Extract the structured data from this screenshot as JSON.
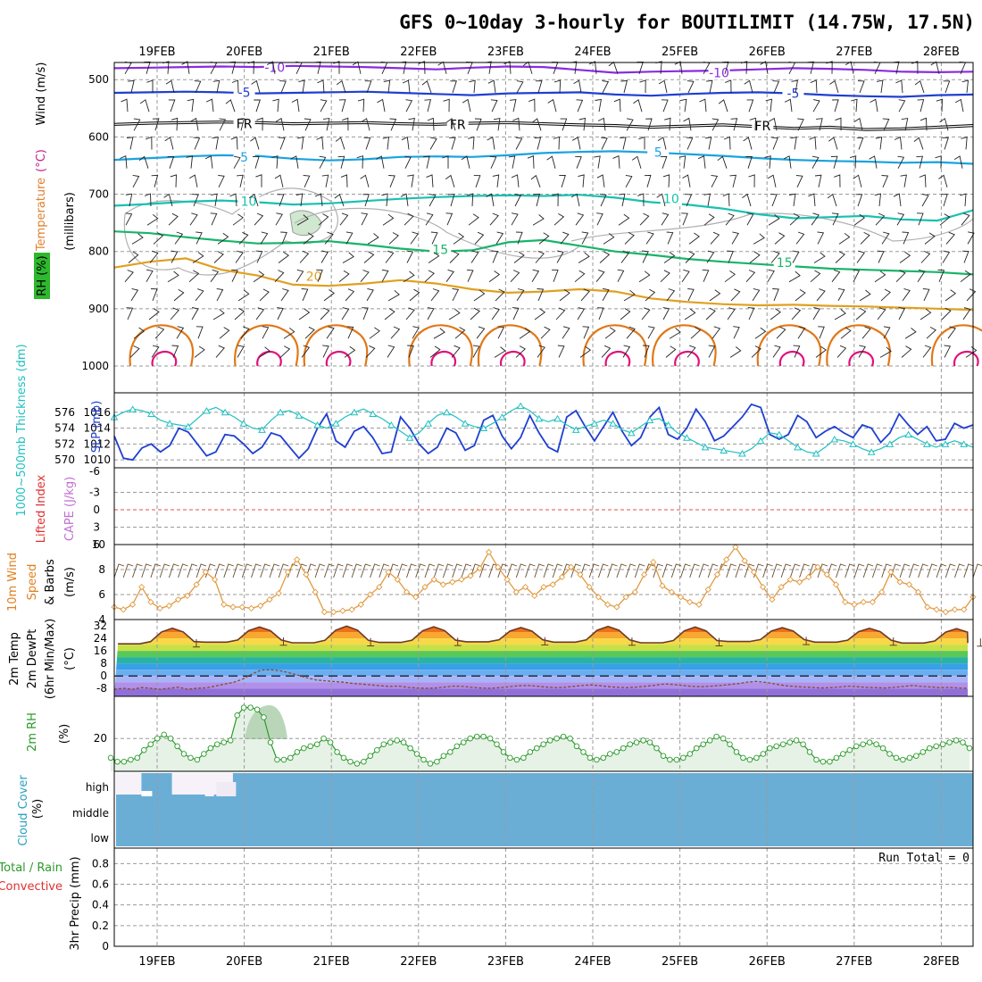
{
  "title": "GFS 0~10day 3-hourly for BOUTILIMIT (14.75W, 17.5N)",
  "colors": {
    "purple": "#8a2be2",
    "blue": "#1f3fd1",
    "lightblue": "#1aa3e0",
    "teal": "#19c1b0",
    "green": "#18b46a",
    "gold": "#e0a020",
    "orange": "#e07818",
    "magenta": "#e0107a",
    "slp": "#1f3fd1",
    "thick": "#20c0c0",
    "wind10": "#e09a40",
    "rh2m": "#2a9a2a",
    "cloud": "#6aaed6",
    "grid": "#9a9a9a"
  },
  "chart_data": [
    {
      "id": "upper_air",
      "type": "contour",
      "ylabel_parts": [
        "RH (%)",
        "Temperature",
        "(°C)",
        "Wind (m/s)"
      ],
      "yaxis_label": "(millibars)",
      "y_ticks": [
        "500",
        "600",
        "700",
        "800",
        "900",
        "1000"
      ],
      "ylim": [
        470,
        1000
      ],
      "temperature_contours": [
        {
          "label": "-10",
          "values": [
            480,
            479,
            478,
            477,
            478,
            476,
            477,
            478,
            480,
            482,
            479,
            477,
            478,
            483,
            488,
            486,
            485,
            484,
            482,
            480,
            481,
            483,
            486,
            487,
            486
          ]
        },
        {
          "label": "-5",
          "values": [
            523,
            522,
            521,
            522,
            524,
            523,
            522,
            521,
            523,
            525,
            527,
            524,
            523,
            522,
            526,
            528,
            525,
            523,
            522,
            524,
            527,
            529,
            530,
            527,
            526
          ]
        },
        {
          "label": "FR",
          "values": [
            578,
            576,
            575,
            574,
            575,
            577,
            576,
            575,
            577,
            578,
            576,
            575,
            577,
            579,
            580,
            583,
            581,
            579,
            582,
            585,
            583,
            587,
            586,
            583,
            580
          ]
        },
        {
          "label": "5",
          "values": [
            640,
            637,
            634,
            632,
            633,
            638,
            641,
            639,
            635,
            634,
            635,
            632,
            628,
            626,
            625,
            627,
            630,
            633,
            637,
            640,
            642,
            643,
            645,
            644,
            647
          ]
        },
        {
          "label": "10",
          "values": [
            720,
            717,
            713,
            711,
            714,
            718,
            716,
            712,
            708,
            705,
            703,
            702,
            703,
            701,
            706,
            714,
            718,
            725,
            735,
            742,
            740,
            738,
            744,
            746,
            728
          ]
        },
        {
          "label": "15",
          "values": [
            765,
            768,
            775,
            781,
            786,
            785,
            782,
            788,
            795,
            800,
            798,
            784,
            780,
            790,
            800,
            806,
            813,
            818,
            822,
            826,
            830,
            832,
            834,
            836,
            840
          ]
        },
        {
          "label": "20",
          "values": [
            828,
            818,
            812,
            832,
            842,
            858,
            860,
            856,
            850,
            856,
            866,
            872,
            870,
            866,
            870,
            882,
            888,
            892,
            894,
            893,
            895,
            896,
            898,
            900,
            902
          ]
        }
      ],
      "contour_labels": [
        {
          "text": "-10",
          "x": 1.35,
          "series": 0
        },
        {
          "text": "-10",
          "x": 6.45,
          "series": 0
        },
        {
          "text": "-5",
          "x": 1.0,
          "series": 1
        },
        {
          "text": "-5",
          "x": 7.3,
          "series": 1
        },
        {
          "text": "FR",
          "x": 1.0,
          "series": 2
        },
        {
          "text": "FR",
          "x": 3.45,
          "series": 2
        },
        {
          "text": "FR",
          "x": 6.95,
          "series": 2
        },
        {
          "text": "5",
          "x": 1.0,
          "series": 3
        },
        {
          "text": "5",
          "x": 5.75,
          "series": 3
        },
        {
          "text": "10",
          "x": 1.05,
          "series": 4
        },
        {
          "text": "10",
          "x": 5.9,
          "series": 4
        },
        {
          "text": "15",
          "x": 3.25,
          "series": 5
        },
        {
          "text": "15",
          "x": 7.2,
          "series": 5
        },
        {
          "text": "20",
          "x": 1.8,
          "series": 6
        }
      ]
    },
    {
      "id": "slp_thickness",
      "type": "line",
      "ylabel_left": "1000~500mb Thickness (dm)",
      "ylabel_right": "SLP (mb)",
      "yticks_left": [
        "570",
        "572",
        "574",
        "576"
      ],
      "yticks_right": [
        "1010",
        "1012",
        "1014",
        "1016"
      ],
      "ylim_slp": [
        1009,
        1018
      ],
      "slp": [
        1013,
        1010.2,
        1010,
        1011.5,
        1012,
        1011,
        1011.8,
        1014,
        1013.5,
        1012,
        1010.5,
        1011,
        1013.2,
        1013,
        1012,
        1010.8,
        1011.6,
        1013.4,
        1013,
        1011.6,
        1010.2,
        1011.4,
        1014,
        1015.8,
        1012.4,
        1011.6,
        1013.6,
        1014.2,
        1012.8,
        1010.8,
        1011,
        1015.4,
        1014,
        1012,
        1010.8,
        1011.6,
        1014,
        1013.4,
        1011.2,
        1011.8,
        1015,
        1015.6,
        1013,
        1011.4,
        1012.8,
        1015.6,
        1013.4,
        1011.6,
        1011,
        1015.4,
        1016.2,
        1014.2,
        1012.4,
        1014.2,
        1016,
        1013.6,
        1011.8,
        1012.8,
        1015.4,
        1016.6,
        1013.2,
        1012.6,
        1014,
        1016.4,
        1014.8,
        1012.4,
        1013,
        1014.2,
        1015.4,
        1017,
        1016.6,
        1013.2,
        1012.6,
        1013.2,
        1015.6,
        1014.8,
        1012.8,
        1013.6,
        1014.2,
        1013.4,
        1012.8,
        1014.4,
        1014,
        1012.2,
        1013.4,
        1015.8,
        1014.4,
        1013.2,
        1014.2,
        1012.4,
        1012.6,
        1014.6,
        1014,
        1014.4
      ],
      "thickness": [
        1015.4,
        1016,
        1016.4,
        1016.2,
        1015.8,
        1015,
        1014.6,
        1014.4,
        1014.2,
        1015.2,
        1016.2,
        1016.6,
        1016,
        1015.4,
        1014.6,
        1014,
        1013.8,
        1015,
        1016,
        1016.2,
        1015.6,
        1015,
        1014.4,
        1014,
        1014.6,
        1015.4,
        1016,
        1016.4,
        1015.8,
        1015.2,
        1014.4,
        1013.6,
        1012.8,
        1013.4,
        1014.6,
        1015.6,
        1016,
        1015.4,
        1014.6,
        1014.2,
        1014,
        1014.6,
        1015.4,
        1016.2,
        1016.8,
        1016.2,
        1015.2,
        1014.8,
        1015.2,
        1014.4,
        1013.8,
        1014.2,
        1014.6,
        1015,
        1014.6,
        1013.8,
        1013.4,
        1014.2,
        1015,
        1015.2,
        1014.4,
        1013.4,
        1012.8,
        1012.2,
        1011.6,
        1011.4,
        1011.2,
        1011,
        1010.8,
        1011.4,
        1012.4,
        1013.4,
        1013.2,
        1012.4,
        1011.6,
        1011,
        1010.8,
        1011.6,
        1012.6,
        1012.4,
        1012,
        1011.4,
        1011,
        1011.4,
        1012,
        1012.8,
        1013.2,
        1012.6,
        1012,
        1011.6,
        1012,
        1012.4,
        1012,
        1011.6
      ]
    },
    {
      "id": "cape_li",
      "type": "line",
      "ylabel_parts": [
        "Lifted Index",
        "CAPE (J/kg)"
      ],
      "y_ticks": [
        "-3",
        "0",
        "3",
        "6"
      ],
      "ytick_top": "-6",
      "values": []
    },
    {
      "id": "wind10m",
      "type": "line",
      "ylabel_parts": [
        "10m Wind",
        "Speed",
        "& Barbs",
        "(m/s)"
      ],
      "y_ticks": [
        "4",
        "6",
        "8",
        "10"
      ],
      "ylim": [
        4,
        10
      ],
      "values": [
        5,
        4.8,
        5.2,
        6.6,
        5.4,
        4.9,
        5.1,
        5.6,
        5.9,
        6.8,
        7.8,
        7.2,
        5.2,
        5,
        5,
        4.9,
        5.1,
        5.6,
        6.1,
        7.8,
        8.8,
        7.6,
        6.2,
        4.6,
        4.6,
        4.7,
        4.8,
        5.2,
        6,
        6.6,
        7.8,
        7.2,
        6.2,
        5.8,
        6.6,
        7.2,
        6.8,
        7,
        7.2,
        7.5,
        8.1,
        9.4,
        8.2,
        7.2,
        6.2,
        6.6,
        5.9,
        6.6,
        6.8,
        7.4,
        8.2,
        7.6,
        6.6,
        5.8,
        5.2,
        5,
        5.8,
        6.2,
        7.6,
        8.6,
        6.7,
        6.2,
        5.8,
        5.4,
        5.2,
        6.4,
        7.6,
        8.8,
        9.8,
        8.7,
        7.8,
        6.6,
        5.6,
        6.6,
        7.2,
        7,
        7.4,
        8.2,
        7.6,
        6.8,
        5.4,
        5.2,
        5.4,
        5.4,
        6.2,
        7.8,
        7,
        6.8,
        6.2,
        5,
        4.8,
        4.6,
        4.8,
        4.8,
        5.8
      ]
    },
    {
      "id": "temp2m",
      "type": "area",
      "ylabel_parts": [
        "2m Temp",
        "2m DewPt",
        "(6hr Min/Max)",
        "(°C)"
      ],
      "y_ticks": [
        "-8",
        "0",
        "8",
        "16",
        "24",
        "32"
      ],
      "ylim": [
        -13,
        36
      ],
      "temp_max_daily": [
        30.5,
        31.2,
        31.8,
        31.4,
        30.9,
        31.6,
        31.2,
        30.8,
        30.4,
        30.2
      ],
      "temp_min_daily": [
        20.5,
        21.6,
        21.2,
        21.4,
        21.8,
        21.6,
        21.2,
        22,
        21.6,
        21
      ],
      "dewpoint": [
        -8.5,
        -7.9,
        -8.5,
        -7.4,
        -7.9,
        -8.5,
        -7.9,
        -7.2,
        -8.5,
        -7.9,
        -7.6,
        -6.5,
        -5.2,
        -4.1,
        -2,
        1.2,
        3.8,
        4,
        3.4,
        2.1,
        0.5,
        -1.2,
        -2.6,
        -3.1,
        -3.6,
        -4,
        -4.8,
        -5.2,
        -5.7,
        -6.3,
        -6.7,
        -6.5,
        -7.3,
        -7.7,
        -7.9,
        -7.7,
        -7.1,
        -6.5,
        -6.7,
        -7.3,
        -7.7,
        -7.9,
        -7.5,
        -6.9,
        -6.3,
        -6.1,
        -6.5,
        -7.1,
        -7.5,
        -7.3,
        -6.7,
        -6.1,
        -5.7,
        -6.3,
        -6.9,
        -7.3,
        -7.5,
        -7.1,
        -6.5,
        -5.9,
        -5.1,
        -5.5,
        -6.1,
        -6.7,
        -6.9,
        -6.5,
        -6.1,
        -5.5,
        -4.9,
        -3.9,
        -3.5,
        -4.1,
        -5.1,
        -6.1,
        -6.7,
        -7.1,
        -7.3,
        -7.7,
        -7.5,
        -7.1,
        -6.5,
        -6.9,
        -7.3,
        -7.5,
        -7.7,
        -7.3,
        -6.7,
        -6.1,
        -6.7,
        -7.1,
        -7.5,
        -7.3,
        -7.7,
        -7.9
      ]
    },
    {
      "id": "rh2m",
      "type": "area",
      "ylabel_parts": [
        "2m RH",
        "(%)"
      ],
      "y_ticks": [
        "20"
      ],
      "ylim": [
        3,
        40
      ],
      "values": [
        10,
        8,
        8,
        9,
        10,
        14,
        17,
        20,
        22,
        20,
        16,
        12,
        10,
        9,
        12,
        15,
        17,
        18,
        19,
        32,
        36,
        36,
        35,
        31,
        18,
        9,
        9,
        10,
        13,
        15,
        16,
        17,
        20,
        18,
        13,
        10,
        8,
        7,
        8,
        11,
        14,
        17,
        18,
        19,
        18,
        15,
        12,
        9,
        7,
        8,
        11,
        13,
        16,
        18,
        20,
        21,
        21,
        20,
        17,
        13,
        10,
        9,
        10,
        13,
        15,
        17,
        19,
        20,
        21,
        20,
        16,
        13,
        10,
        9,
        10,
        12,
        13,
        15,
        17,
        18,
        19,
        18,
        15,
        11,
        9,
        9,
        10,
        12,
        15,
        17,
        19,
        21,
        20,
        17,
        13,
        10,
        9,
        10,
        12,
        15,
        16,
        17,
        18,
        19,
        17,
        13,
        9,
        8,
        8,
        10,
        12,
        14,
        16,
        17,
        18,
        17,
        15,
        12,
        10,
        9,
        10,
        11,
        13,
        15,
        16,
        17,
        18,
        19,
        18,
        15
      ]
    },
    {
      "id": "cloud_cover",
      "type": "heatmap",
      "ylabel_parts": [
        "Cloud Cover",
        "(%)"
      ],
      "levels": [
        "high",
        "middle",
        "low"
      ],
      "high_gaps": [
        {
          "from": 0.0,
          "to": 0.3
        },
        {
          "from": 0.65,
          "to": 1.35
        }
      ]
    },
    {
      "id": "precip",
      "type": "bar",
      "ylabel_parts": [
        "Total / Rain",
        "Convective",
        "3hr Precip (mm)"
      ],
      "y_ticks": [
        "0",
        "0.2",
        "0.4",
        "0.6",
        "0.8"
      ],
      "ylim": [
        0,
        0.95
      ],
      "values": [],
      "run_total_label": "Run Total = 0"
    }
  ],
  "x_axis": {
    "dates": [
      "19FEB",
      "20FEB",
      "21FEB",
      "22FEB",
      "23FEB",
      "24FEB",
      "25FEB",
      "26FEB",
      "27FEB",
      "28FEB"
    ]
  }
}
